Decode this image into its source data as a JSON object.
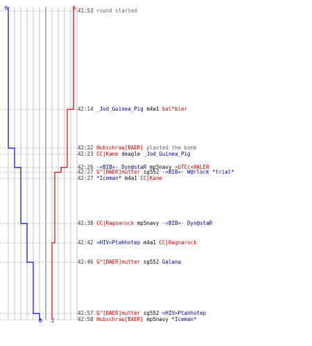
{
  "score": {
    "blue_start": "6",
    "red_start": "6",
    "blue_end": "0",
    "red_end": "2"
  },
  "colors": {
    "blue": "#0000cc",
    "red": "#cc0000",
    "grid": "#c0c0c0",
    "dash": "#b0b0b0"
  },
  "events": [
    {
      "time": "41:53",
      "parts": [
        {
          "t": "round started",
          "c": "note"
        }
      ]
    },
    {
      "time": "42:14",
      "parts": [
        {
          "t": "_Jod_Guinea_Pig",
          "c": "blue"
        },
        {
          "t": " m4a1 ",
          "c": "blk"
        },
        {
          "t": "bal*bier",
          "c": "red"
        }
      ]
    },
    {
      "time": "42:22",
      "parts": [
        {
          "t": "Hubschrau[BAER]",
          "c": "red"
        },
        {
          "t": " planted the bomb",
          "c": "note"
        }
      ]
    },
    {
      "time": "42:23",
      "parts": [
        {
          "t": "CC|Kane",
          "c": "red"
        },
        {
          "t": " deagle ",
          "c": "blk"
        },
        {
          "t": "_Jod_Guinea_Pig",
          "c": "blue"
        }
      ]
    },
    {
      "time": "42:26",
      "parts": [
        {
          "t": "-=BIB=- Dyn@staR",
          "c": "blue"
        },
        {
          "t": " mp5navy ",
          "c": "blk"
        },
        {
          "t": ">bTCc<HALER",
          "c": "red"
        }
      ]
    },
    {
      "time": "42:27",
      "parts": [
        {
          "t": "G^[BAER]mutter",
          "c": "red"
        },
        {
          "t": " sg552 ",
          "c": "blk"
        },
        {
          "t": "-=BIB=- W@rlock *trial*",
          "c": "blue"
        }
      ]
    },
    {
      "time": "42:27",
      "parts": [
        {
          "t": "*Iceman*",
          "c": "blue"
        },
        {
          "t": " m4a1 ",
          "c": "blk"
        },
        {
          "t": "CC|Kane",
          "c": "red"
        }
      ]
    },
    {
      "time": "42:38",
      "parts": [
        {
          "t": "CC|Ragnarock",
          "c": "red"
        },
        {
          "t": " mp5navy ",
          "c": "blk"
        },
        {
          "t": "-=BIB=- Dyn@staR",
          "c": "blue"
        }
      ]
    },
    {
      "time": "42:42",
      "parts": [
        {
          "t": "=HIV=Ptahhotep",
          "c": "blue"
        },
        {
          "t": " m4a1 ",
          "c": "blk"
        },
        {
          "t": "CC|Ragnarock",
          "c": "red"
        }
      ]
    },
    {
      "time": "42:46",
      "parts": [
        {
          "t": "G^[BAER]mutter",
          "c": "red"
        },
        {
          "t": " sg552 ",
          "c": "blk"
        },
        {
          "t": "Galana",
          "c": "blue"
        }
      ]
    },
    {
      "time": "42:57",
      "parts": [
        {
          "t": "G^[BAER]mutter",
          "c": "red"
        },
        {
          "t": " sg552 ",
          "c": "blk"
        },
        {
          "t": "=HIV=Ptahhotep",
          "c": "blue"
        }
      ]
    },
    {
      "time": "42:58",
      "parts": [
        {
          "t": "Hubschrau[BAER]",
          "c": "red"
        },
        {
          "t": " mp5navy ",
          "c": "blk"
        },
        {
          "t": "*Iceman*",
          "c": "blue"
        }
      ]
    }
  ]
}
